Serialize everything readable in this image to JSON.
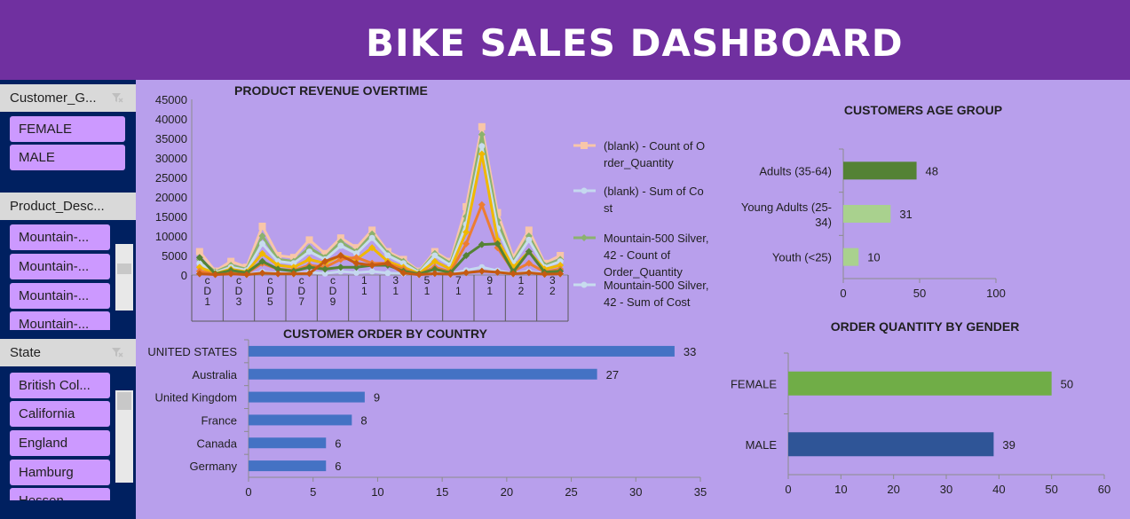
{
  "header": {
    "title": "BIKE SALES DASHBOARD"
  },
  "slicers": [
    {
      "title": "Customer_G...",
      "items": [
        "FEMALE",
        "MALE"
      ]
    },
    {
      "title": "Product_Desc...",
      "items": [
        "Mountain-...",
        "Mountain-...",
        "Mountain-...",
        "Mountain-..."
      ]
    },
    {
      "title": "State",
      "items": [
        "British Col...",
        "California",
        "England",
        "Hamburg",
        "Hessen"
      ]
    }
  ],
  "colors": {
    "header": "#7030a0",
    "background": "#b89fec",
    "sidebar": "#002060",
    "slicer_button": "#cc99ff",
    "bar_blue": "#4472c4",
    "bar_green_dark": "#548235",
    "bar_green_light": "#a9d18e",
    "bar_female": "#70ad47",
    "bar_male": "#2f5597"
  },
  "chart_data": [
    {
      "id": "revenue",
      "type": "line",
      "title": "PRODUCT REVENUE OVERTIME",
      "ylim": [
        0,
        45000
      ],
      "yticks": [
        0,
        5000,
        10000,
        15000,
        20000,
        25000,
        30000,
        35000,
        40000,
        45000
      ],
      "x_labels": [
        "c\nD\n1",
        "c\nD\n3",
        "c\nD\n5",
        "c\nD\n7",
        "c\nD\n9",
        "1\n1",
        "3\n1",
        "5\n1",
        "7\n1",
        "9\n1",
        "1\n2",
        "3\n2"
      ],
      "legend": [
        "(blank) - Count of Order_Quantity",
        "(blank) - Sum of Cost",
        "Mountain-500 Silver, 42 - Count of Order_Quantity",
        "Mountain-500 Silver, 42 - Sum of  Cost"
      ],
      "series": [
        {
          "name": "(blank) - Count of Order_Quantity",
          "color": "#f8c6a8",
          "values": [
            6000,
            1000,
            3500,
            2000,
            12500,
            5000,
            4500,
            9000,
            5500,
            9500,
            7000,
            11500,
            6000,
            4000,
            1000,
            6000,
            3500,
            17500,
            38000,
            16000,
            4500,
            11500,
            3000,
            5000
          ]
        },
        {
          "name": "(blank) - Sum of Cost",
          "color": "#c5d8ef",
          "values": [
            500,
            300,
            500,
            200,
            800,
            500,
            400,
            700,
            400,
            900,
            600,
            900,
            500,
            400,
            200,
            500,
            300,
            1200,
            2000,
            1100,
            400,
            900,
            300,
            400
          ]
        },
        {
          "name": "Mountain-500 Silver, 42 - Count of Order_Quantity",
          "color": "#8bb26e",
          "values": [
            4000,
            800,
            2500,
            1500,
            10000,
            4000,
            3500,
            7000,
            4500,
            8500,
            6000,
            10500,
            5500,
            3500,
            800,
            5500,
            3000,
            15000,
            36000,
            14000,
            3500,
            10000,
            2500,
            4000
          ]
        },
        {
          "name": "Mountain-500 Silver, 42 - Sum of  Cost",
          "color": "#c7dcee",
          "values": [
            3000,
            600,
            2000,
            1200,
            8000,
            3500,
            3000,
            6000,
            4000,
            7500,
            5500,
            9500,
            5000,
            3000,
            600,
            5000,
            2500,
            13000,
            33000,
            12000,
            3000,
            9000,
            2000,
            3500
          ]
        },
        {
          "name": "",
          "color": "#f0b800",
          "values": [
            2000,
            400,
            1500,
            800,
            5500,
            2500,
            2000,
            4000,
            3000,
            5000,
            4000,
            7000,
            3500,
            2000,
            400,
            3500,
            1500,
            11000,
            31000,
            9000,
            2000,
            6000,
            1500,
            2500
          ]
        },
        {
          "name": "",
          "color": "#ed7d31",
          "values": [
            1000,
            200,
            800,
            400,
            3000,
            1500,
            1200,
            2500,
            2000,
            4000,
            4500,
            3000,
            3000,
            1500,
            200,
            2000,
            800,
            8000,
            18000,
            7000,
            1000,
            3000,
            800,
            1500
          ]
        },
        {
          "name": "",
          "color": "#548235",
          "values": [
            4500,
            300,
            1200,
            600,
            3500,
            1500,
            1000,
            2000,
            1500,
            2000,
            2000,
            2500,
            2500,
            1000,
            300,
            1500,
            600,
            5000,
            7800,
            8000,
            800,
            6000,
            700,
            1000
          ]
        },
        {
          "name": "",
          "color": "#c55a11",
          "values": [
            300,
            100,
            300,
            100,
            500,
            300,
            300,
            400,
            3500,
            5000,
            3000,
            2500,
            3000,
            500,
            100,
            400,
            200,
            600,
            1000,
            700,
            300,
            600,
            200,
            300
          ]
        }
      ]
    },
    {
      "id": "country",
      "type": "bar",
      "title": "CUSTOMER ORDER BY COUNTRY",
      "categories": [
        "UNITED STATES",
        "Australia",
        "United Kingdom",
        "France",
        "Canada",
        "Germany"
      ],
      "values": [
        33,
        27,
        9,
        8,
        6,
        6
      ],
      "xlim": [
        0,
        35
      ],
      "xticks": [
        0,
        5,
        10,
        15,
        20,
        25,
        30,
        35
      ]
    },
    {
      "id": "age",
      "type": "bar",
      "title": "CUSTOMERS AGE GROUP",
      "categories": [
        "Adults (35-64)",
        "Young Adults (25-34)",
        "Youth (<25)"
      ],
      "category_lines": [
        [
          "Adults (35-64)"
        ],
        [
          "Young Adults (25-",
          "34)"
        ],
        [
          "Youth (<25)"
        ]
      ],
      "values": [
        48,
        31,
        10
      ],
      "xlim": [
        0,
        100
      ],
      "xticks": [
        0,
        50,
        100
      ]
    },
    {
      "id": "gender",
      "type": "bar",
      "title": "ORDER QUANTITY BY GENDER",
      "categories": [
        "FEMALE",
        "MALE"
      ],
      "values": [
        50,
        39
      ],
      "xlim": [
        0,
        60
      ],
      "xticks": [
        0,
        10,
        20,
        30,
        40,
        50,
        60
      ]
    }
  ]
}
